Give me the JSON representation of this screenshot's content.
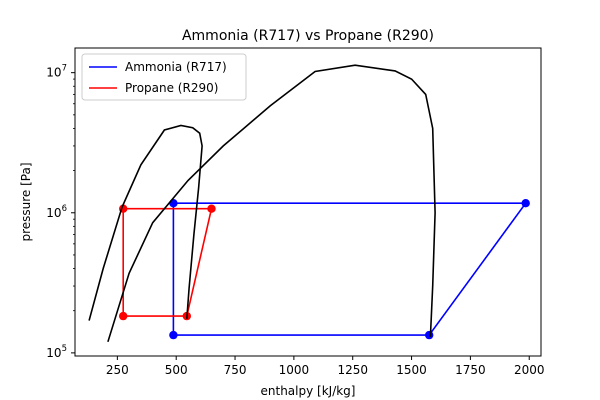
{
  "chart_data": {
    "type": "line",
    "title": "Ammonia (R717) vs Propane (R290)",
    "xlabel": "enthalpy [kJ/kg]",
    "ylabel": "pressure [Pa]",
    "yscale": "log",
    "xlim": [
      70,
      2050
    ],
    "ylim": [
      95000,
      15000000
    ],
    "xticks": [
      250,
      500,
      750,
      1000,
      1250,
      1500,
      1750,
      2000
    ],
    "yticks": [
      {
        "value": 100000,
        "base": "10",
        "exp": "5"
      },
      {
        "value": 1000000,
        "base": "10",
        "exp": "6"
      },
      {
        "value": 10000000,
        "base": "10",
        "exp": "7"
      }
    ],
    "grid": false,
    "legend_position": "top-left",
    "series": [
      {
        "name": "Ammonia (R717)",
        "color": "#0000ff",
        "marker": "circle",
        "points": [
          [
            488,
            134000
          ],
          [
            488,
            1170000
          ],
          [
            1985,
            1170000
          ],
          [
            1575,
            134000
          ],
          [
            488,
            134000
          ]
        ]
      },
      {
        "name": "Propane (R290)",
        "color": "#ff0000",
        "marker": "circle",
        "points": [
          [
            275,
            183000
          ],
          [
            275,
            1070000
          ],
          [
            650,
            1070000
          ],
          [
            545,
            183000
          ],
          [
            275,
            183000
          ]
        ]
      },
      {
        "name": "",
        "color": "#000000",
        "marker": "none",
        "points": [
          [
            210,
            120000
          ],
          [
            300,
            370000
          ],
          [
            400,
            850000
          ],
          [
            550,
            1700000
          ],
          [
            700,
            3000000
          ],
          [
            900,
            5800000
          ],
          [
            1090,
            10200000
          ],
          [
            1260,
            11300000
          ],
          [
            1430,
            10300000
          ],
          [
            1500,
            9000000
          ],
          [
            1560,
            7000000
          ],
          [
            1590,
            4000000
          ],
          [
            1600,
            1000000
          ],
          [
            1590,
            300000
          ],
          [
            1580,
            130000
          ]
        ]
      },
      {
        "name": "",
        "color": "#000000",
        "marker": "none",
        "points": [
          [
            130,
            170000
          ],
          [
            190,
            400000
          ],
          [
            270,
            1100000
          ],
          [
            350,
            2200000
          ],
          [
            450,
            3900000
          ],
          [
            520,
            4200000
          ],
          [
            570,
            4050000
          ],
          [
            600,
            3700000
          ],
          [
            610,
            3000000
          ],
          [
            595,
            1500000
          ],
          [
            575,
            700000
          ],
          [
            555,
            290000
          ],
          [
            545,
            175000
          ]
        ]
      }
    ]
  }
}
